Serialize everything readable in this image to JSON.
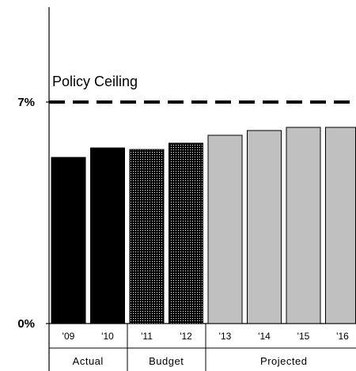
{
  "chart_data": {
    "type": "bar",
    "categories": [
      "'09",
      "'10",
      "'11",
      "'12",
      "'13",
      "'14",
      "'15",
      "'16"
    ],
    "values": [
      5.25,
      5.55,
      5.5,
      5.7,
      5.95,
      6.1,
      6.2,
      6.2
    ],
    "ylim": [
      0,
      10
    ],
    "y_ticks": [
      {
        "value": 0,
        "label": "0%"
      },
      {
        "value": 7,
        "label": "7%"
      }
    ],
    "groups": [
      {
        "label": "Actual",
        "start": 0,
        "end": 1,
        "fill": "solid",
        "color": "#000000"
      },
      {
        "label": "Budget",
        "start": 2,
        "end": 3,
        "fill": "dotted",
        "color": "#000000"
      },
      {
        "label": "Projected",
        "start": 4,
        "end": 7,
        "fill": "solid",
        "color": "#c0c0c0"
      }
    ],
    "reference_line": {
      "value": 7,
      "label": "Policy Ceiling",
      "style": "dashed"
    },
    "title": "",
    "xlabel": "",
    "ylabel": "",
    "grid": false,
    "legend": "none"
  }
}
